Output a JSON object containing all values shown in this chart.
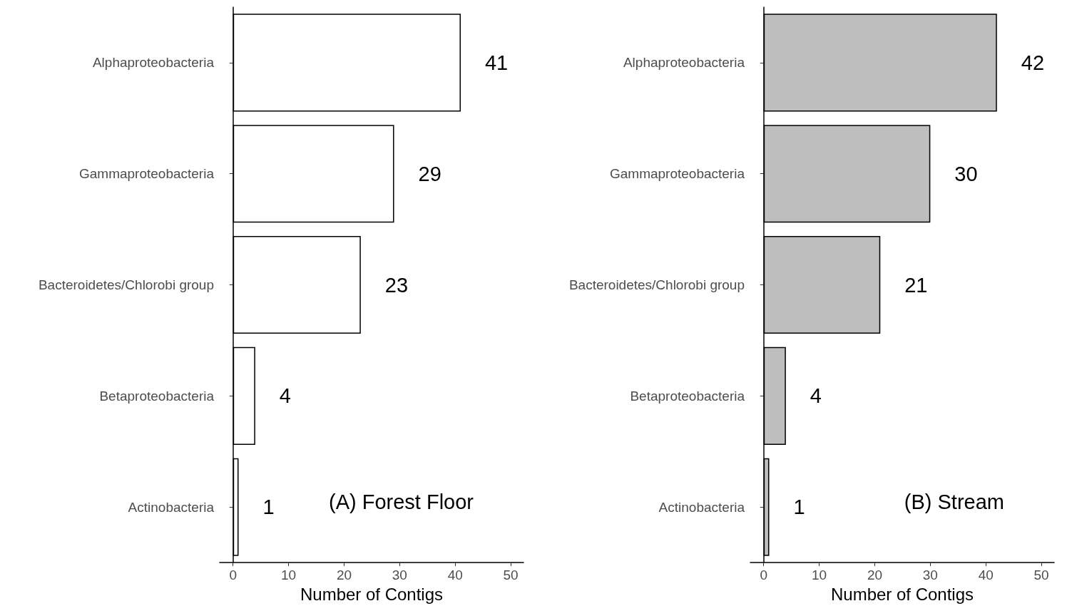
{
  "chart_data": [
    {
      "type": "bar",
      "orientation": "horizontal",
      "categories": [
        "Alphaproteobacteria",
        "Gammaproteobacteria",
        "Bacteroidetes/Chlorobi group",
        "Betaproteobacteria",
        "Actinobacteria"
      ],
      "values": [
        41,
        29,
        23,
        4,
        1
      ],
      "color": "#ffffff",
      "xlim": [
        -2.4,
        52.3
      ],
      "xticks": [
        0,
        10,
        20,
        30,
        40,
        50
      ],
      "xlabel": "Number of Contigs",
      "annotations": [
        "(A) Forest Floor"
      ],
      "data_labels": true,
      "grid": false
    },
    {
      "type": "bar",
      "orientation": "horizontal",
      "categories": [
        "Alphaproteobacteria",
        "Gammaproteobacteria",
        "Bacteroidetes/Chlorobi group",
        "Betaproteobacteria",
        "Actinobacteria"
      ],
      "values": [
        42,
        30,
        21,
        4,
        1
      ],
      "color": "#bebebe",
      "xlim": [
        -2.4,
        52.3
      ],
      "xticks": [
        0,
        10,
        20,
        30,
        40,
        50
      ],
      "xlabel": "Number of Contigs",
      "annotations": [
        "(B) Stream"
      ],
      "data_labels": true,
      "grid": false
    }
  ]
}
